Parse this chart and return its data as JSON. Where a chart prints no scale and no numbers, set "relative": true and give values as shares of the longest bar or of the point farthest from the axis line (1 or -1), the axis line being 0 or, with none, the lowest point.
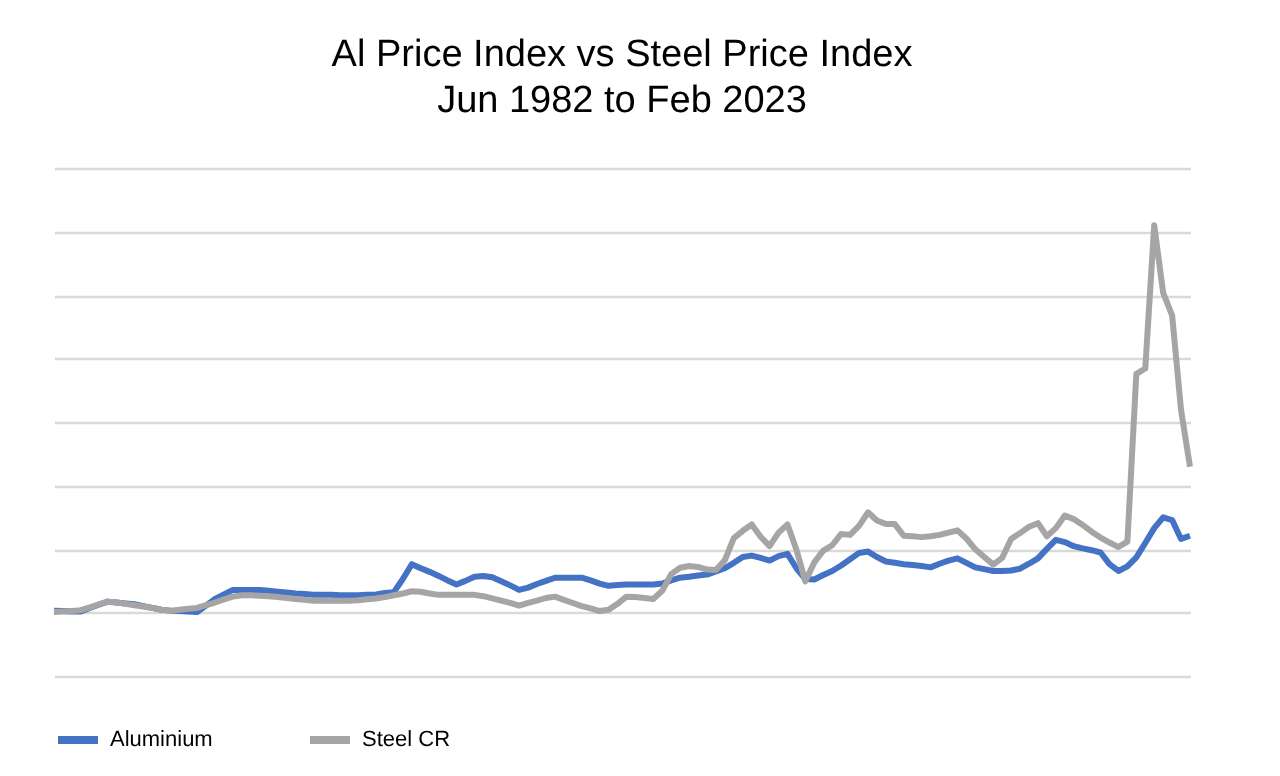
{
  "chart_data": {
    "type": "line",
    "title": "Al Price Index vs Steel Price Index",
    "subtitle": "Jun 1982 to Feb 2023",
    "relative": true,
    "grid": "y",
    "legend": "bottom",
    "marker": "none",
    "line_style": "solid",
    "categories": [
      null,
      null,
      null,
      null,
      null,
      null,
      null,
      null,
      null,
      null,
      null,
      null,
      null,
      null,
      null,
      null,
      null,
      null,
      null,
      null,
      null,
      null,
      null,
      null,
      null,
      null,
      null,
      null,
      null,
      null,
      null,
      null,
      null,
      null,
      null,
      null,
      null,
      null,
      null,
      null,
      null,
      null,
      null,
      null,
      null,
      null,
      null,
      null,
      null,
      null,
      null,
      null,
      null,
      null,
      null,
      null,
      null,
      null,
      null,
      null,
      null,
      null,
      null,
      null,
      null,
      null,
      null,
      null,
      null,
      null,
      null,
      null,
      null,
      null,
      null,
      null,
      null,
      null,
      null,
      null,
      null,
      null,
      null,
      null,
      null,
      null,
      null,
      null,
      null,
      null,
      null,
      null,
      null,
      null,
      null,
      null,
      null,
      null,
      null,
      null,
      null,
      null,
      null,
      null,
      null,
      null,
      null,
      null,
      null,
      null,
      null,
      null,
      null,
      null,
      null,
      null,
      null,
      null,
      null,
      null,
      null,
      null,
      null,
      null,
      null,
      null,
      null,
      null
    ],
    "series": [
      {
        "name": "Aluminium",
        "color": "#4472c4",
        "values": [
          0.145,
          0.144,
          0.143,
          0.143,
          0.151,
          0.158,
          0.165,
          0.163,
          0.161,
          0.159,
          0.155,
          0.151,
          0.147,
          0.145,
          0.144,
          0.143,
          0.142,
          0.156,
          0.171,
          0.181,
          0.191,
          0.191,
          0.191,
          0.191,
          0.189,
          0.187,
          0.185,
          0.183,
          0.182,
          0.18,
          0.18,
          0.18,
          0.179,
          0.179,
          0.179,
          0.18,
          0.181,
          0.184,
          0.186,
          0.215,
          0.248,
          0.239,
          0.231,
          0.222,
          0.212,
          0.203,
          0.211,
          0.22,
          0.222,
          0.219,
          0.21,
          0.201,
          0.191,
          0.196,
          0.204,
          0.211,
          0.218,
          0.218,
          0.218,
          0.218,
          0.212,
          0.205,
          0.2,
          0.202,
          0.203,
          0.203,
          0.203,
          0.203,
          0.205,
          0.212,
          0.218,
          0.22,
          0.223,
          0.225,
          0.232,
          0.239,
          0.251,
          0.264,
          0.267,
          0.262,
          0.256,
          0.266,
          0.271,
          0.239,
          0.215,
          0.214,
          0.224,
          0.233,
          0.245,
          0.259,
          0.273,
          0.276,
          0.264,
          0.254,
          0.251,
          0.248,
          0.246,
          0.244,
          0.241,
          0.249,
          0.256,
          0.261,
          0.251,
          0.241,
          0.237,
          0.233,
          0.233,
          0.234,
          0.238,
          0.249,
          0.261,
          0.282,
          0.302,
          0.297,
          0.288,
          0.283,
          0.279,
          0.274,
          0.248,
          0.233,
          0.243,
          0.263,
          0.295,
          0.328,
          0.352,
          0.346,
          0.304,
          0.311
        ]
      },
      {
        "name": "Steel CR",
        "color": "#a5a5a5",
        "values": [
          0.142,
          0.143,
          0.144,
          0.146,
          0.152,
          0.159,
          0.165,
          0.163,
          0.16,
          0.157,
          0.154,
          0.151,
          0.147,
          0.145,
          0.147,
          0.149,
          0.151,
          0.157,
          0.163,
          0.17,
          0.176,
          0.179,
          0.179,
          0.178,
          0.177,
          0.175,
          0.173,
          0.171,
          0.169,
          0.167,
          0.167,
          0.167,
          0.167,
          0.167,
          0.168,
          0.17,
          0.172,
          0.175,
          0.179,
          0.183,
          0.188,
          0.187,
          0.183,
          0.18,
          0.18,
          0.18,
          0.18,
          0.18,
          0.177,
          0.172,
          0.167,
          0.162,
          0.156,
          0.162,
          0.167,
          0.173,
          0.176,
          0.169,
          0.162,
          0.155,
          0.15,
          0.144,
          0.147,
          0.16,
          0.176,
          0.175,
          0.173,
          0.171,
          0.189,
          0.226,
          0.24,
          0.244,
          0.242,
          0.236,
          0.235,
          0.257,
          0.306,
          0.322,
          0.336,
          0.309,
          0.288,
          0.318,
          0.336,
          0.28,
          0.21,
          0.252,
          0.278,
          0.29,
          0.315,
          0.313,
          0.333,
          0.363,
          0.345,
          0.337,
          0.337,
          0.311,
          0.31,
          0.308,
          0.31,
          0.313,
          0.318,
          0.323,
          0.305,
          0.281,
          0.264,
          0.247,
          0.262,
          0.304,
          0.317,
          0.331,
          0.339,
          0.31,
          0.328,
          0.356,
          0.348,
          0.335,
          0.32,
          0.307,
          0.296,
          0.286,
          0.298,
          0.67,
          0.682,
          1,
          0.85,
          0.8,
          0.59,
          0.464
        ]
      }
    ]
  }
}
